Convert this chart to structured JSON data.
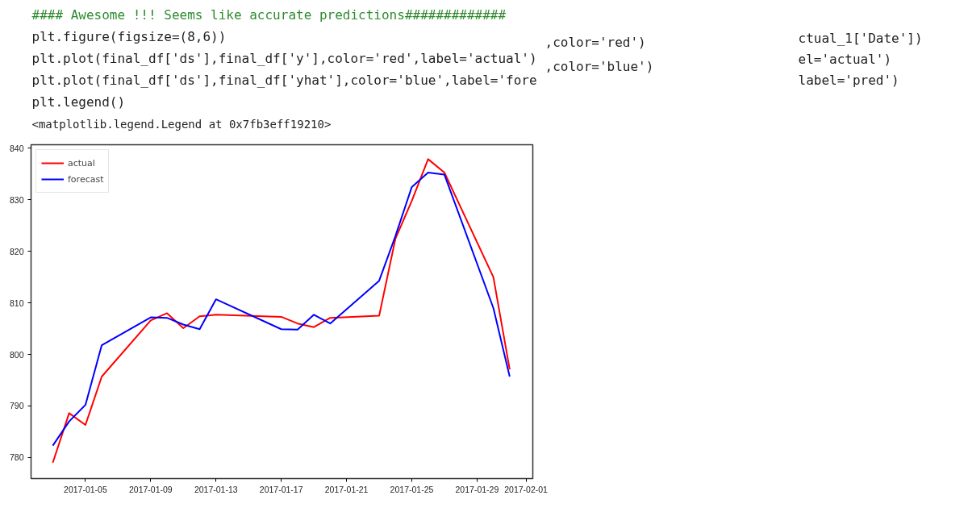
{
  "chart_data": {
    "type": "line",
    "x": [
      "2017-01-03",
      "2017-01-04",
      "2017-01-05",
      "2017-01-06",
      "2017-01-09",
      "2017-01-10",
      "2017-01-11",
      "2017-01-12",
      "2017-01-13",
      "2017-01-17",
      "2017-01-18",
      "2017-01-19",
      "2017-01-20",
      "2017-01-23",
      "2017-01-24",
      "2017-01-25",
      "2017-01-26",
      "2017-01-27",
      "2017-01-30",
      "2017-01-31"
    ],
    "series": [
      {
        "name": "actual",
        "color": "#ff0000",
        "values": [
          779.0,
          788.6,
          786.3,
          795.7,
          806.6,
          808.0,
          805.1,
          807.4,
          807.7,
          807.3,
          806.0,
          805.3,
          807.1,
          807.5,
          822.5,
          829.8,
          837.9,
          835.3,
          815.0,
          797.1
        ]
      },
      {
        "name": "forecast",
        "color": "#0000ff",
        "values": [
          782.3,
          787.0,
          790.2,
          801.8,
          807.2,
          807.1,
          805.8,
          804.9,
          810.7,
          804.9,
          804.8,
          807.7,
          806.0,
          814.3,
          823.0,
          832.5,
          835.3,
          834.9,
          809.0,
          795.7
        ]
      }
    ],
    "xlim": [
      "2017-01-01T16:00",
      "2017-02-01T10:00"
    ],
    "xticks": [
      "2017-01-05",
      "2017-01-09",
      "2017-01-13",
      "2017-01-17",
      "2017-01-21",
      "2017-01-25",
      "2017-01-29",
      "2017-02-01"
    ],
    "ylim": [
      775.9,
      840.7
    ],
    "yticks": [
      780,
      790,
      800,
      810,
      820,
      830,
      840
    ],
    "legend": "top left",
    "grid": false,
    "line_style": "solid",
    "annotations": [
      "#### Awesome !!! Seems like accurate predictions#############",
      "plt.figure(figsize=(8,6))",
      "plt.plot(final_df['ds'],final_df['y'],color='red',label='actual')",
      "plt.plot(final_df['ds'],final_df['yhat'],color='blue',label='fore",
      "plt.legend()",
      "<matplotlib.legend.Legend at 0x7fb3eff19210>",
      ",color='red')",
      ",color='blue')",
      "ctual_1['Date'])",
      "el='actual')",
      "label='pred')"
    ]
  }
}
